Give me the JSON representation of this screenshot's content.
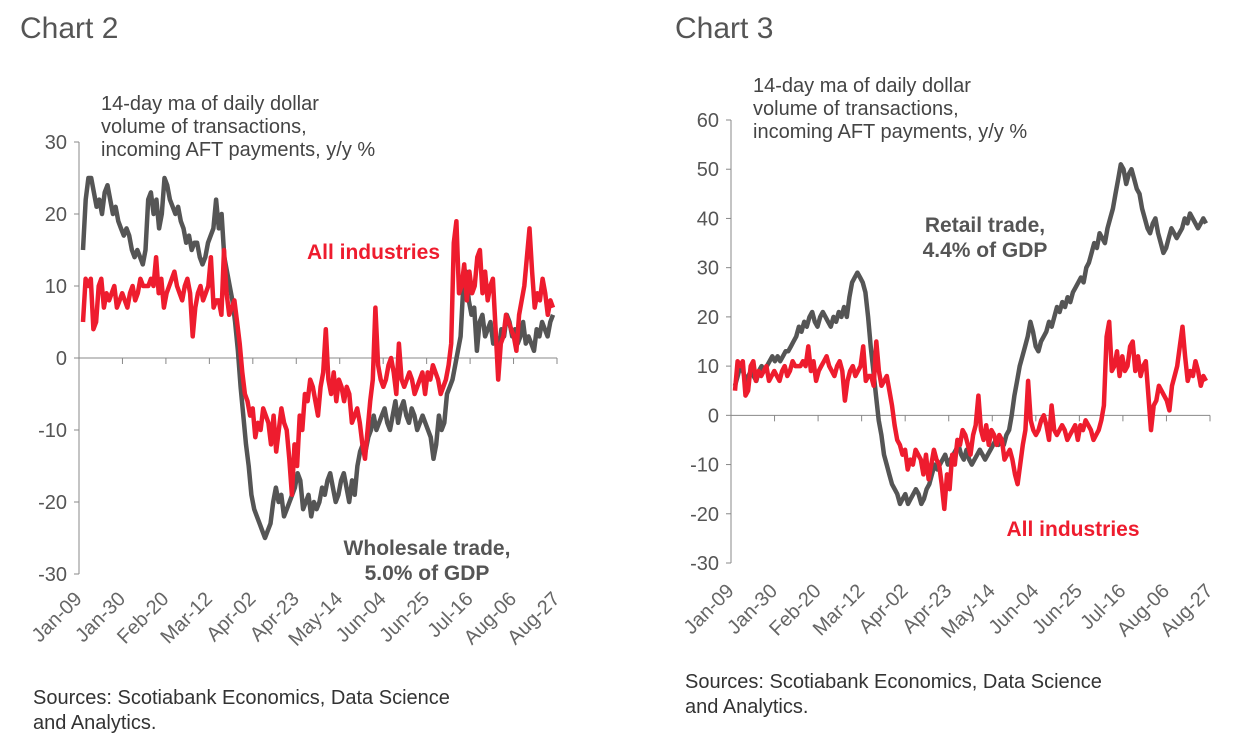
{
  "chart_data": [
    {
      "type": "line",
      "heading": "Chart 2",
      "ylabel": "14-day  ma of daily dollar\nvolume of transactions,\nincoming AFT payments, y/y %",
      "ylim": [
        -30,
        30
      ],
      "yticks": [
        -30,
        -20,
        -10,
        0,
        10,
        20,
        30
      ],
      "xticks": [
        "Jan-09",
        "Jan-30",
        "Feb-20",
        "Mar-12",
        "Apr-02",
        "Apr-23",
        "May-14",
        "Jun-04",
        "Jun-25",
        "Jul-16",
        "Aug-06",
        "Aug-27"
      ],
      "annotations": [
        {
          "text": "All industries",
          "color": "#ee1c2e"
        },
        {
          "text": "Wholesale trade,\n5.0% of GDP",
          "color": "#555555"
        }
      ],
      "series": [
        {
          "name": "All industries",
          "color": "#ee1c2e",
          "values": [
            5,
            11,
            10,
            11,
            4,
            5,
            10,
            11,
            7,
            9,
            8,
            9,
            10,
            7,
            8,
            9,
            8,
            7,
            9,
            10,
            8,
            9,
            11,
            10,
            10,
            10,
            11,
            10,
            14,
            9,
            11,
            7,
            9,
            10,
            11,
            12,
            10,
            9,
            8,
            10,
            11,
            9,
            3,
            7,
            9,
            10,
            8,
            9,
            10,
            14,
            7,
            8,
            8,
            6,
            15,
            9,
            6,
            7,
            8,
            5,
            2,
            -2,
            -5,
            -6,
            -8,
            -7,
            -11,
            -9,
            -10,
            -7,
            -8,
            -9,
            -12,
            -8,
            -13,
            -10,
            -7,
            -9,
            -10,
            -14,
            -19,
            -12,
            -15,
            -8,
            -10,
            -5,
            -6,
            -3,
            -4,
            -6,
            -8,
            -4,
            -2,
            4,
            -3,
            -5,
            -2,
            -6,
            -3,
            -4,
            -6,
            -4,
            -5,
            -9,
            -8,
            -7,
            -9,
            -12,
            -14,
            -10,
            -6,
            -3,
            7,
            -1,
            -3,
            -4,
            -3,
            -1,
            0,
            -2,
            -5,
            2,
            -3,
            -4,
            -3,
            -2,
            -3,
            -5,
            -4,
            -3,
            -2,
            -5,
            -2,
            -3,
            -1,
            -2,
            -3,
            -5,
            -4,
            -3,
            -1,
            2,
            16,
            19,
            9,
            10,
            13,
            8,
            12,
            9,
            10,
            14,
            15,
            9,
            12,
            8,
            10,
            11,
            4,
            -3,
            2,
            3,
            6,
            5,
            4,
            3,
            1,
            6,
            8,
            10,
            14,
            18,
            12,
            7,
            9,
            8,
            11,
            9,
            6,
            8,
            7
          ]
        },
        {
          "name": "Wholesale trade",
          "color": "#555555",
          "values": [
            15,
            22,
            25,
            25,
            23,
            21,
            22,
            20,
            23,
            24,
            22,
            20,
            21,
            19,
            18,
            17,
            18,
            17,
            15,
            14,
            15,
            14,
            13,
            15,
            22,
            23,
            20,
            22,
            18,
            20,
            25,
            24,
            22,
            21,
            20,
            21,
            19,
            18,
            16,
            17,
            15,
            16,
            16,
            14,
            13,
            14,
            16,
            17,
            18,
            22,
            18,
            20,
            14,
            12,
            10,
            8,
            5,
            1,
            -4,
            -8,
            -12,
            -15,
            -19,
            -21,
            -22,
            -23,
            -24,
            -25,
            -24,
            -23,
            -20,
            -18,
            -20,
            -19,
            -22,
            -21,
            -20,
            -19,
            -18,
            -16,
            -17,
            -21,
            -20,
            -19,
            -22,
            -20,
            -21,
            -20,
            -18,
            -19,
            -17,
            -16,
            -18,
            -20,
            -19,
            -17,
            -16,
            -18,
            -20,
            -17,
            -19,
            -15,
            -13,
            -12,
            -13,
            -11,
            -10,
            -8,
            -10,
            -9,
            -8,
            -7,
            -9,
            -10,
            -8,
            -6,
            -9,
            -7,
            -6,
            -8,
            -9,
            -7,
            -8,
            -10,
            -9,
            -8,
            -9,
            -10,
            -11,
            -14,
            -12,
            -8,
            -10,
            -9,
            -5,
            -4,
            -3,
            -1,
            1,
            3,
            10,
            12,
            8,
            6,
            7,
            1,
            5,
            6,
            3,
            4,
            5,
            2,
            3,
            1,
            4,
            3,
            6,
            5,
            3,
            4,
            2,
            3,
            5,
            2,
            3,
            2,
            1,
            4,
            3,
            5,
            4,
            3,
            5,
            6
          ]
        }
      ]
    },
    {
      "type": "line",
      "heading": "Chart 3",
      "ylabel": "14-day  ma of daily dollar\nvolume of transactions,\nincoming AFT payments, y/y %",
      "ylim": [
        -30,
        60
      ],
      "yticks": [
        -30,
        -20,
        -10,
        0,
        10,
        20,
        30,
        40,
        50,
        60
      ],
      "xticks": [
        "Jan-09",
        "Jan-30",
        "Feb-20",
        "Mar-12",
        "Apr-02",
        "Apr-23",
        "May-14",
        "Jun-04",
        "Jun-25",
        "Jul-16",
        "Aug-06",
        "Aug-27"
      ],
      "annotations": [
        {
          "text": "Retail trade,\n4.4% of GDP",
          "color": "#555555"
        },
        {
          "text": "All industries",
          "color": "#ee1c2e"
        }
      ],
      "series": [
        {
          "name": "All industries",
          "color": "#ee1c2e",
          "values": [
            5,
            11,
            10,
            11,
            4,
            5,
            10,
            11,
            7,
            9,
            8,
            9,
            10,
            7,
            8,
            9,
            8,
            7,
            9,
            10,
            8,
            9,
            11,
            10,
            10,
            10,
            11,
            10,
            14,
            9,
            11,
            7,
            9,
            10,
            11,
            12,
            10,
            9,
            8,
            10,
            11,
            9,
            3,
            7,
            9,
            10,
            8,
            9,
            10,
            14,
            7,
            8,
            8,
            6,
            15,
            9,
            6,
            7,
            8,
            5,
            2,
            -2,
            -5,
            -6,
            -8,
            -7,
            -11,
            -9,
            -10,
            -7,
            -8,
            -9,
            -12,
            -8,
            -13,
            -10,
            -7,
            -9,
            -10,
            -14,
            -19,
            -12,
            -15,
            -8,
            -10,
            -5,
            -6,
            -3,
            -4,
            -6,
            -8,
            -4,
            -2,
            4,
            -3,
            -5,
            -2,
            -6,
            -3,
            -4,
            -6,
            -4,
            -5,
            -9,
            -8,
            -7,
            -9,
            -12,
            -14,
            -10,
            -6,
            -3,
            7,
            -1,
            -3,
            -4,
            -3,
            -1,
            0,
            -2,
            -5,
            2,
            -3,
            -4,
            -3,
            -2,
            -3,
            -5,
            -4,
            -3,
            -2,
            -5,
            -2,
            -3,
            -1,
            -2,
            -3,
            -5,
            -4,
            -3,
            -1,
            2,
            16,
            19,
            9,
            10,
            13,
            8,
            12,
            9,
            10,
            14,
            15,
            9,
            12,
            8,
            10,
            11,
            4,
            -3,
            2,
            3,
            6,
            5,
            4,
            3,
            1,
            6,
            8,
            10,
            14,
            18,
            12,
            7,
            9,
            8,
            11,
            9,
            6,
            8,
            7
          ]
        },
        {
          "name": "Retail trade",
          "color": "#555555",
          "values": [
            6,
            8,
            10,
            9,
            7,
            8,
            9,
            8,
            7,
            9,
            10,
            9,
            10,
            11,
            12,
            11,
            12,
            11,
            12,
            13,
            13,
            14,
            15,
            16,
            18,
            17,
            19,
            18,
            20,
            21,
            19,
            18,
            20,
            21,
            20,
            19,
            18,
            20,
            19,
            21,
            20,
            22,
            20,
            24,
            27,
            28,
            29,
            28,
            27,
            25,
            20,
            14,
            9,
            4,
            -1,
            -4,
            -8,
            -10,
            -12,
            -14,
            -15,
            -16,
            -18,
            -17,
            -16,
            -18,
            -17,
            -16,
            -15,
            -16,
            -18,
            -17,
            -15,
            -14,
            -12,
            -10,
            -11,
            -10,
            -9,
            -8,
            -10,
            -9,
            -8,
            -7,
            -6,
            -8,
            -9,
            -7,
            -9,
            -10,
            -9,
            -8,
            -7,
            -8,
            -9,
            -8,
            -7,
            -6,
            -5,
            -6,
            -5,
            -6,
            -4,
            -3,
            0,
            4,
            7,
            10,
            12,
            14,
            16,
            19,
            17,
            14,
            13,
            15,
            16,
            17,
            19,
            18,
            20,
            22,
            21,
            23,
            22,
            24,
            23,
            25,
            26,
            27,
            28,
            27,
            30,
            31,
            33,
            35,
            34,
            37,
            36,
            35,
            38,
            40,
            42,
            45,
            48,
            51,
            50,
            47,
            49,
            50,
            48,
            46,
            45,
            42,
            40,
            38,
            37,
            39,
            40,
            37,
            35,
            33,
            34,
            36,
            38,
            37,
            36,
            37,
            38,
            40,
            39,
            41,
            40,
            39,
            38,
            39,
            40,
            39
          ]
        }
      ]
    }
  ],
  "sources": "Sources: Scotiabank Economics, Data Science\nand Analytics."
}
